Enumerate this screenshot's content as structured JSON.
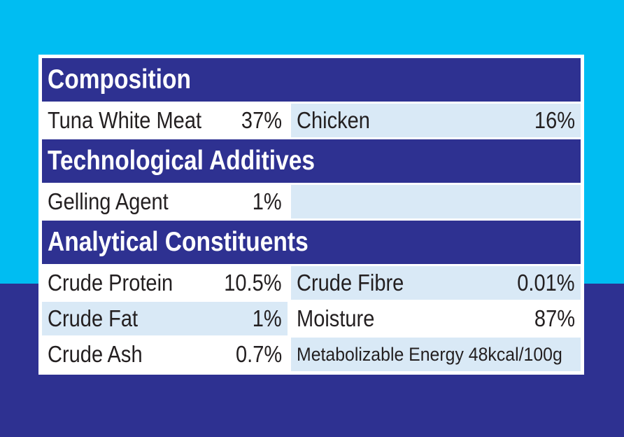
{
  "colors": {
    "background_top": "#00bdf2",
    "background_bottom": "#2e3191",
    "header_bar": "#2e3191",
    "header_text": "#ffffff",
    "cell_highlight": "#d9e9f6",
    "cell_white": "#ffffff",
    "text_dark": "#231f20"
  },
  "label": {
    "sections": [
      {
        "title": "Composition",
        "rows": [
          {
            "left": {
              "name": "Tuna White Meat",
              "value": "37%"
            },
            "right": {
              "name": "Chicken",
              "value": "16%"
            }
          }
        ]
      },
      {
        "title": "Technological Additives",
        "rows": [
          {
            "left": {
              "name": "Gelling Agent",
              "value": "1%"
            }
          }
        ]
      },
      {
        "title": "Analytical Constituents",
        "rows": [
          {
            "left": {
              "name": "Crude Protein",
              "value": "10.5%"
            },
            "right": {
              "name": "Crude Fibre",
              "value": "0.01%"
            }
          },
          {
            "left": {
              "name": "Crude Fat",
              "value": "1%"
            },
            "right": {
              "name": "Moisture",
              "value": "87%"
            }
          },
          {
            "left": {
              "name": "Crude Ash",
              "value": "0.7%"
            },
            "right": {
              "name": "Metabolizable Energy",
              "value": "48kcal/100g"
            }
          }
        ]
      }
    ]
  }
}
